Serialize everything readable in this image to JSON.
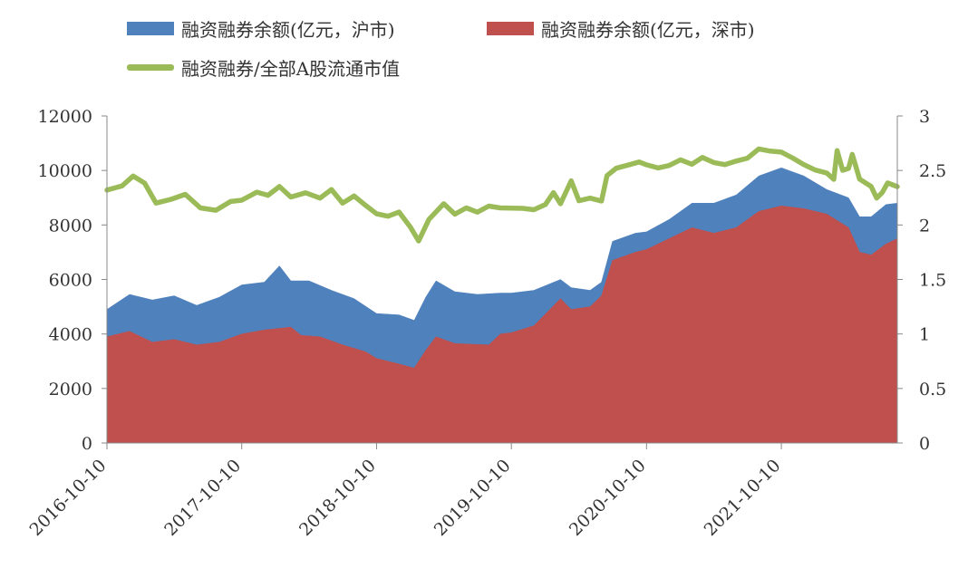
{
  "chart_data": {
    "type": "area",
    "title": "",
    "legend_position": "top",
    "grid": false,
    "colors": {
      "sh": "#4F81BD",
      "sz": "#C0504D",
      "ratio": "#9BBB59"
    },
    "x_ticks": [
      "2016-10-10",
      "2017-10-10",
      "2018-10-10",
      "2019-10-10",
      "2020-10-10",
      "2021-10-10"
    ],
    "y_left": {
      "lim": [
        0,
        12000
      ],
      "ticks": [
        "0",
        "2000",
        "4000",
        "6000",
        "8000",
        "10000",
        "12000"
      ]
    },
    "y_right": {
      "lim": [
        0,
        3
      ],
      "ticks": [
        "0",
        "0.5",
        "1",
        "1.5",
        "2",
        "2.5",
        "3"
      ]
    },
    "series": [
      {
        "name": "融资融券余额(亿元，沪市)",
        "axis": "left",
        "kind": "stacked-area",
        "points": [
          [
            "2016-10-10",
            4900
          ],
          [
            "2016-12-10",
            5450
          ],
          [
            "2017-02-10",
            5250
          ],
          [
            "2017-04-10",
            5400
          ],
          [
            "2017-06-10",
            5050
          ],
          [
            "2017-08-10",
            5350
          ],
          [
            "2017-10-10",
            5800
          ],
          [
            "2017-12-10",
            5900
          ],
          [
            "2018-01-20",
            6500
          ],
          [
            "2018-02-20",
            5950
          ],
          [
            "2018-04-10",
            5950
          ],
          [
            "2018-06-10",
            5600
          ],
          [
            "2018-08-10",
            5300
          ],
          [
            "2018-10-10",
            4750
          ],
          [
            "2018-12-10",
            4700
          ],
          [
            "2019-01-20",
            4500
          ],
          [
            "2019-02-20",
            5350
          ],
          [
            "2019-03-20",
            5950
          ],
          [
            "2019-05-10",
            5550
          ],
          [
            "2019-07-10",
            5450
          ],
          [
            "2019-09-10",
            5500
          ],
          [
            "2019-10-10",
            5500
          ],
          [
            "2019-12-10",
            5600
          ],
          [
            "2020-02-20",
            6000
          ],
          [
            "2020-03-20",
            5700
          ],
          [
            "2020-05-10",
            5600
          ],
          [
            "2020-06-10",
            5900
          ],
          [
            "2020-07-10",
            7400
          ],
          [
            "2020-09-10",
            7700
          ],
          [
            "2020-10-10",
            7750
          ],
          [
            "2020-12-10",
            8200
          ],
          [
            "2021-02-10",
            8800
          ],
          [
            "2021-04-10",
            8800
          ],
          [
            "2021-06-10",
            9100
          ],
          [
            "2021-08-10",
            9800
          ],
          [
            "2021-10-10",
            10100
          ],
          [
            "2021-12-10",
            9800
          ],
          [
            "2022-02-10",
            9300
          ],
          [
            "2022-04-10",
            9000
          ],
          [
            "2022-05-10",
            8300
          ],
          [
            "2022-06-10",
            8300
          ],
          [
            "2022-07-20",
            8750
          ],
          [
            "2022-08-20",
            8800
          ]
        ]
      },
      {
        "name": "融资融券余额(亿元，深市)",
        "axis": "left",
        "kind": "area",
        "points": [
          [
            "2016-10-10",
            3900
          ],
          [
            "2016-12-10",
            4100
          ],
          [
            "2017-02-10",
            3700
          ],
          [
            "2017-04-10",
            3800
          ],
          [
            "2017-06-10",
            3600
          ],
          [
            "2017-08-10",
            3700
          ],
          [
            "2017-10-10",
            4000
          ],
          [
            "2017-12-10",
            4150
          ],
          [
            "2018-02-20",
            4250
          ],
          [
            "2018-03-20",
            3950
          ],
          [
            "2018-05-10",
            3900
          ],
          [
            "2018-07-10",
            3600
          ],
          [
            "2018-09-10",
            3350
          ],
          [
            "2018-10-10",
            3100
          ],
          [
            "2018-12-10",
            2900
          ],
          [
            "2019-01-20",
            2750
          ],
          [
            "2019-02-20",
            3400
          ],
          [
            "2019-03-20",
            3900
          ],
          [
            "2019-05-10",
            3650
          ],
          [
            "2019-08-10",
            3600
          ],
          [
            "2019-09-10",
            4000
          ],
          [
            "2019-10-10",
            4050
          ],
          [
            "2019-12-10",
            4300
          ],
          [
            "2020-02-20",
            5300
          ],
          [
            "2020-03-20",
            4900
          ],
          [
            "2020-05-10",
            5000
          ],
          [
            "2020-06-10",
            5400
          ],
          [
            "2020-07-10",
            6700
          ],
          [
            "2020-09-10",
            7000
          ],
          [
            "2020-10-10",
            7100
          ],
          [
            "2020-12-10",
            7500
          ],
          [
            "2021-02-10",
            7900
          ],
          [
            "2021-04-10",
            7700
          ],
          [
            "2021-06-10",
            7900
          ],
          [
            "2021-08-10",
            8500
          ],
          [
            "2021-10-10",
            8700
          ],
          [
            "2021-12-10",
            8600
          ],
          [
            "2022-02-10",
            8400
          ],
          [
            "2022-04-10",
            7900
          ],
          [
            "2022-05-10",
            7000
          ],
          [
            "2022-06-10",
            6900
          ],
          [
            "2022-07-20",
            7300
          ],
          [
            "2022-08-20",
            7500
          ]
        ]
      },
      {
        "name": "融资融券/全部A股流通市值",
        "axis": "right",
        "kind": "line",
        "points": [
          [
            "2016-10-10",
            2.32
          ],
          [
            "2016-11-20",
            2.36
          ],
          [
            "2016-12-20",
            2.45
          ],
          [
            "2017-01-20",
            2.38
          ],
          [
            "2017-02-20",
            2.2
          ],
          [
            "2017-04-01",
            2.24
          ],
          [
            "2017-05-10",
            2.28
          ],
          [
            "2017-06-20",
            2.15
          ],
          [
            "2017-08-01",
            2.14
          ],
          [
            "2017-09-10",
            2.22
          ],
          [
            "2017-10-10",
            2.22
          ],
          [
            "2017-11-20",
            2.3
          ],
          [
            "2017-12-20",
            2.28
          ],
          [
            "2018-01-20",
            2.35
          ],
          [
            "2018-02-20",
            2.25
          ],
          [
            "2018-04-01",
            2.3
          ],
          [
            "2018-05-10",
            2.25
          ],
          [
            "2018-06-10",
            2.32
          ],
          [
            "2018-07-10",
            2.2
          ],
          [
            "2018-08-10",
            2.27
          ],
          [
            "2018-09-10",
            2.18
          ],
          [
            "2018-10-10",
            2.1
          ],
          [
            "2018-11-10",
            2.08
          ],
          [
            "2018-12-10",
            2.12
          ],
          [
            "2019-01-10",
            1.98
          ],
          [
            "2019-02-01",
            1.85
          ],
          [
            "2019-03-01",
            2.05
          ],
          [
            "2019-04-10",
            2.2
          ],
          [
            "2019-05-10",
            2.1
          ],
          [
            "2019-06-10",
            2.15
          ],
          [
            "2019-07-10",
            2.12
          ],
          [
            "2019-08-10",
            2.18
          ],
          [
            "2019-09-10",
            2.15
          ],
          [
            "2019-10-10",
            2.15
          ],
          [
            "2019-11-10",
            2.16
          ],
          [
            "2019-12-10",
            2.14
          ],
          [
            "2020-01-10",
            2.18
          ],
          [
            "2020-02-01",
            2.3
          ],
          [
            "2020-02-20",
            2.2
          ],
          [
            "2020-03-20",
            2.4
          ],
          [
            "2020-04-10",
            2.22
          ],
          [
            "2020-05-10",
            2.25
          ],
          [
            "2020-06-10",
            2.22
          ],
          [
            "2020-06-25",
            2.45
          ],
          [
            "2020-07-20",
            2.52
          ],
          [
            "2020-08-20",
            2.55
          ],
          [
            "2020-09-20",
            2.58
          ],
          [
            "2020-10-10",
            2.55
          ],
          [
            "2020-11-10",
            2.52
          ],
          [
            "2020-12-10",
            2.55
          ],
          [
            "2021-01-10",
            2.6
          ],
          [
            "2021-02-10",
            2.55
          ],
          [
            "2021-03-10",
            2.62
          ],
          [
            "2021-04-10",
            2.58
          ],
          [
            "2021-05-10",
            2.55
          ],
          [
            "2021-06-10",
            2.58
          ],
          [
            "2021-07-10",
            2.62
          ],
          [
            "2021-08-10",
            2.7
          ],
          [
            "2021-09-10",
            2.67
          ],
          [
            "2021-10-10",
            2.67
          ],
          [
            "2021-11-10",
            2.62
          ],
          [
            "2021-12-10",
            2.55
          ],
          [
            "2022-01-10",
            2.5
          ],
          [
            "2022-02-10",
            2.48
          ],
          [
            "2022-03-01",
            2.42
          ],
          [
            "2022-03-10",
            2.68
          ],
          [
            "2022-03-25",
            2.5
          ],
          [
            "2022-04-10",
            2.52
          ],
          [
            "2022-04-20",
            2.65
          ],
          [
            "2022-05-10",
            2.42
          ],
          [
            "2022-06-10",
            2.35
          ],
          [
            "2022-06-25",
            2.25
          ],
          [
            "2022-07-10",
            2.3
          ],
          [
            "2022-07-25",
            2.38
          ],
          [
            "2022-08-20",
            2.35
          ]
        ]
      }
    ]
  }
}
